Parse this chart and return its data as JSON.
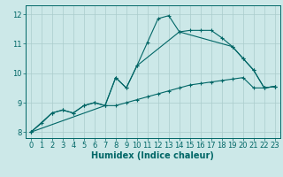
{
  "xlabel": "Humidex (Indice chaleur)",
  "bg_color": "#cce8e8",
  "grid_color": "#aacccc",
  "line_color": "#006666",
  "xlim": [
    -0.5,
    23.5
  ],
  "ylim": [
    7.8,
    12.3
  ],
  "xticks": [
    0,
    1,
    2,
    3,
    4,
    5,
    6,
    7,
    8,
    9,
    10,
    11,
    12,
    13,
    14,
    15,
    16,
    17,
    18,
    19,
    20,
    21,
    22,
    23
  ],
  "yticks": [
    8,
    9,
    10,
    11,
    12
  ],
  "line1_x": [
    0,
    1,
    2,
    3,
    4,
    5,
    6,
    7,
    8,
    9,
    10,
    11,
    12,
    13,
    14,
    15,
    16,
    17,
    18,
    19,
    20,
    21,
    22,
    23
  ],
  "line1_y": [
    8.0,
    8.3,
    8.65,
    8.75,
    8.65,
    8.9,
    9.0,
    8.9,
    9.85,
    9.5,
    10.25,
    11.05,
    11.85,
    11.95,
    11.4,
    11.45,
    11.45,
    11.45,
    11.2,
    10.9,
    10.5,
    10.1,
    9.5,
    9.55
  ],
  "line2_x": [
    0,
    2,
    3,
    4,
    5,
    6,
    7,
    8,
    9,
    10,
    11,
    12,
    13,
    14,
    15,
    16,
    17,
    18,
    19,
    20,
    21,
    22,
    23
  ],
  "line2_y": [
    8.0,
    8.65,
    8.75,
    8.65,
    8.9,
    9.0,
    8.9,
    8.9,
    9.0,
    9.1,
    9.2,
    9.3,
    9.4,
    9.5,
    9.6,
    9.65,
    9.7,
    9.75,
    9.8,
    9.85,
    9.5,
    9.5,
    9.55
  ],
  "line3_x": [
    0,
    7,
    8,
    9,
    10,
    14,
    19,
    20,
    21,
    22,
    23
  ],
  "line3_y": [
    8.0,
    8.9,
    9.85,
    9.5,
    10.25,
    11.4,
    10.9,
    10.5,
    10.1,
    9.5,
    9.55
  ]
}
